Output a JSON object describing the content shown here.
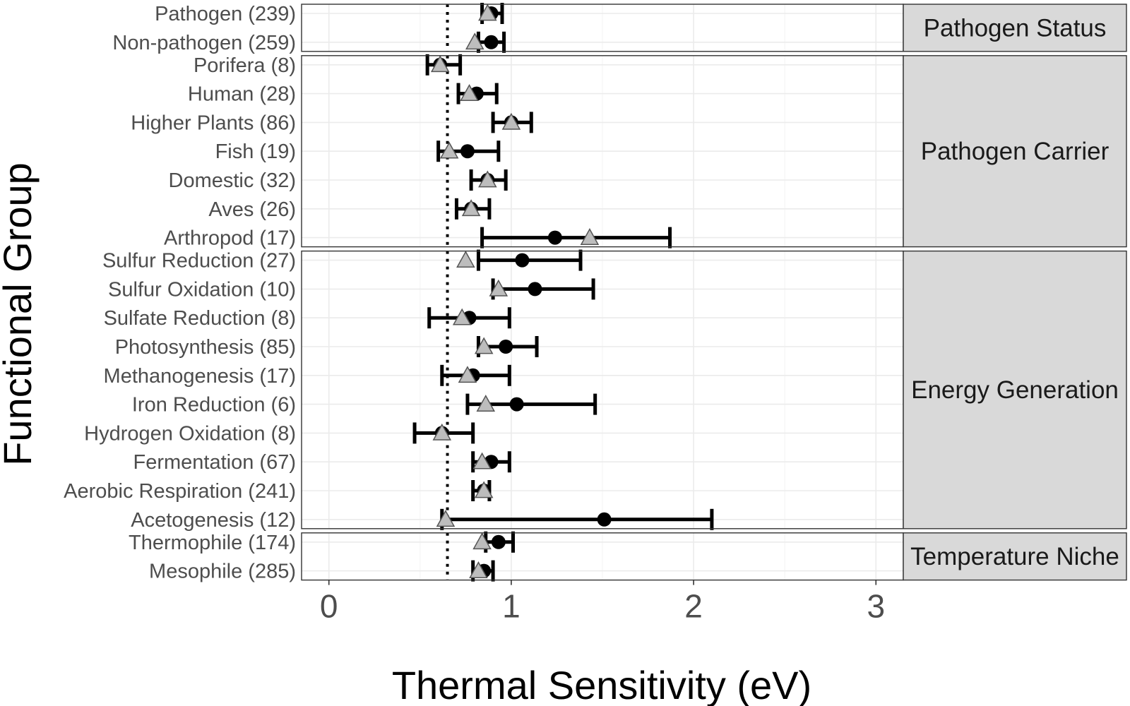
{
  "chart_data": {
    "type": "scatter",
    "xlabel": "Thermal Sensitivity (eV)",
    "ylabel": "Functional Group",
    "xlim": [
      -0.15,
      3.15
    ],
    "x_ticks": [
      "0",
      "1",
      "2",
      "3"
    ],
    "x_tick_values": [
      0,
      1,
      2,
      3
    ],
    "reference_line_x": 0.65,
    "grid": true,
    "colors": {
      "circle": "#000000",
      "triangle_fill": "#bdbdbd",
      "triangle_stroke": "#555555",
      "errorbar": "#000000",
      "strip_bg": "#d9d9d9",
      "panel_border": "#333333",
      "grid": "#ebebeb"
    },
    "panels": [
      {
        "strip": "Pathogen Status",
        "groups": [
          {
            "label": "Pathogen (239)",
            "circle": 0.89,
            "triangle": 0.87,
            "low": 0.84,
            "high": 0.95
          },
          {
            "label": "Non-pathogen (259)",
            "circle": 0.89,
            "triangle": 0.8,
            "low": 0.82,
            "high": 0.96
          }
        ]
      },
      {
        "strip": "Pathogen Carrier",
        "groups": [
          {
            "label": "Porifera (8)",
            "circle": 0.61,
            "triangle": 0.61,
            "low": 0.54,
            "high": 0.72
          },
          {
            "label": "Human (28)",
            "circle": 0.81,
            "triangle": 0.77,
            "low": 0.71,
            "high": 0.92
          },
          {
            "label": "Higher Plants (86)",
            "circle": 1.0,
            "triangle": 1.0,
            "low": 0.9,
            "high": 1.11
          },
          {
            "label": "Fish (19)",
            "circle": 0.76,
            "triangle": 0.66,
            "low": 0.6,
            "high": 0.93
          },
          {
            "label": "Domestic (32)",
            "circle": 0.87,
            "triangle": 0.87,
            "low": 0.78,
            "high": 0.97
          },
          {
            "label": "Aves (26)",
            "circle": 0.78,
            "triangle": 0.78,
            "low": 0.7,
            "high": 0.88
          },
          {
            "label": "Arthropod (17)",
            "circle": 1.24,
            "triangle": 1.43,
            "low": 0.84,
            "high": 1.87
          }
        ]
      },
      {
        "strip": "Energy Generation",
        "groups": [
          {
            "label": "Sulfur Reduction (27)",
            "circle": 1.06,
            "triangle": 0.75,
            "low": 0.82,
            "high": 1.38
          },
          {
            "label": "Sulfur Oxidation (10)",
            "circle": 1.13,
            "triangle": 0.93,
            "low": 0.9,
            "high": 1.45
          },
          {
            "label": "Sulfate Reduction (8)",
            "circle": 0.77,
            "triangle": 0.73,
            "low": 0.55,
            "high": 0.99
          },
          {
            "label": "Photosynthesis (85)",
            "circle": 0.97,
            "triangle": 0.85,
            "low": 0.82,
            "high": 1.14
          },
          {
            "label": "Methanogenesis (17)",
            "circle": 0.79,
            "triangle": 0.76,
            "low": 0.62,
            "high": 0.99
          },
          {
            "label": "Iron Reduction (6)",
            "circle": 1.03,
            "triangle": 0.86,
            "low": 0.76,
            "high": 1.46
          },
          {
            "label": "Hydrogen Oxidation (8)",
            "circle": 0.62,
            "triangle": 0.62,
            "low": 0.47,
            "high": 0.79
          },
          {
            "label": "Fermentation (67)",
            "circle": 0.89,
            "triangle": 0.84,
            "low": 0.79,
            "high": 0.99
          },
          {
            "label": "Aerobic Respiration (241)",
            "circle": 0.85,
            "triangle": 0.85,
            "low": 0.79,
            "high": 0.88
          },
          {
            "label": "Acetogenesis (12)",
            "circle": 1.51,
            "triangle": 0.64,
            "low": 0.62,
            "high": 2.1
          }
        ]
      },
      {
        "strip": "Temperature Niche",
        "groups": [
          {
            "label": "Thermophile (174)",
            "circle": 0.93,
            "triangle": 0.84,
            "low": 0.86,
            "high": 1.01
          },
          {
            "label": "Mesophile (285)",
            "circle": 0.85,
            "triangle": 0.82,
            "low": 0.79,
            "high": 0.9
          }
        ]
      }
    ]
  }
}
